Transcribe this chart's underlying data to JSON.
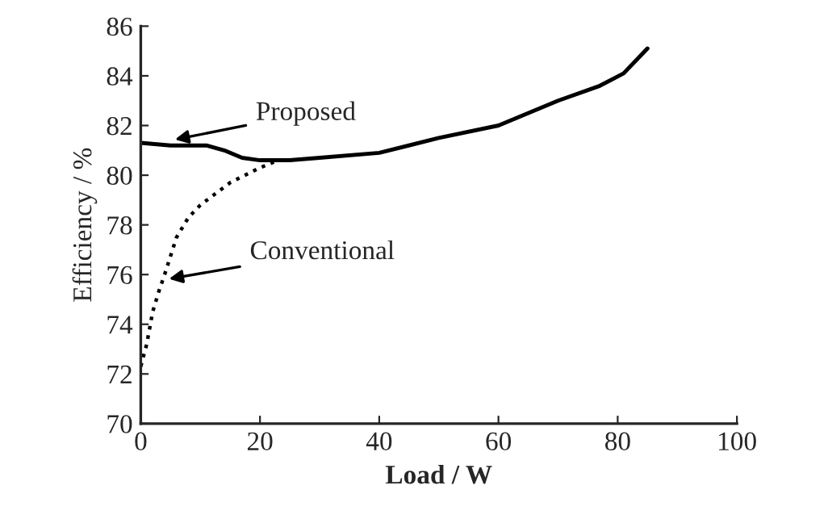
{
  "chart_data": {
    "type": "line",
    "xlabel": "Load / W",
    "ylabel": "Efficiency / %",
    "xlim": [
      0,
      100
    ],
    "xticks": [
      0,
      20,
      40,
      60,
      80,
      100
    ],
    "ylim": [
      70,
      86
    ],
    "yticks": [
      70,
      72,
      74,
      76,
      78,
      80,
      82,
      84,
      86
    ],
    "grid": false,
    "legend": false,
    "marker": "none",
    "series": [
      {
        "color": "#000000",
        "line_style": "solid",
        "x": [
          0,
          5,
          11,
          14,
          17,
          20,
          25,
          30,
          40,
          50,
          60,
          70,
          77,
          81,
          85
        ],
        "values": [
          81.3,
          81.2,
          81.2,
          81.0,
          80.7,
          80.6,
          80.6,
          80.7,
          80.9,
          81.5,
          82.0,
          83.0,
          83.6,
          84.1,
          85.1
        ]
      },
      {
        "color": "#000000",
        "line_style": "dotted",
        "x": [
          0,
          1,
          2,
          3,
          4,
          6,
          8,
          10,
          15,
          20,
          23
        ],
        "values": [
          72.3,
          73.2,
          74.5,
          75.3,
          76.0,
          77.5,
          78.3,
          78.8,
          79.7,
          80.3,
          80.6
        ]
      }
    ],
    "annotations": [
      {
        "text": "Proposed",
        "x": 5,
        "y": 81.4
      },
      {
        "text": "Conventional",
        "x": 4,
        "y": 75.8
      }
    ]
  }
}
